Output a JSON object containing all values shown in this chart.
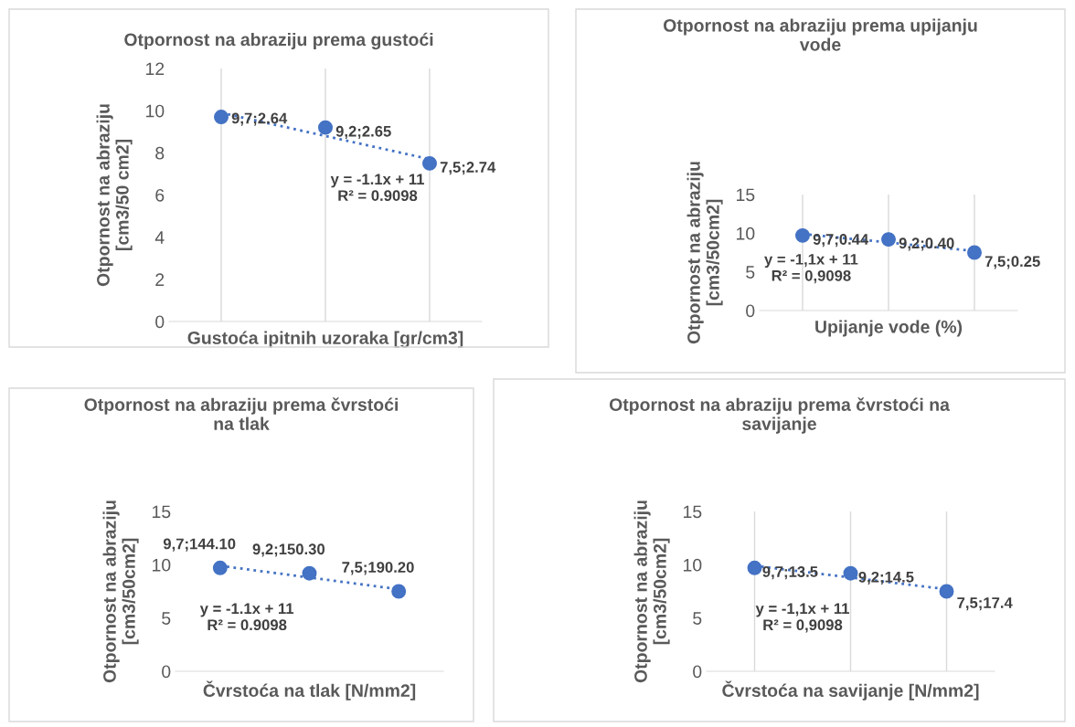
{
  "chart_data": [
    {
      "type": "scatter",
      "title": "Otpornost na abraziju prema gustoći",
      "xlabel": "Gustoća ipitnih uzoraka [gr/cm3]",
      "ylabel": "Otpornost na abraziju\n[cm3/50 cm2]",
      "categories": [
        null,
        null,
        null
      ],
      "ylim": [
        0,
        12
      ],
      "yticks": [
        0,
        2,
        4,
        6,
        8,
        10,
        12
      ],
      "grid": "x",
      "marker": "circle",
      "series": [
        {
          "color": "#4472c4",
          "values": [
            9.7,
            9.2,
            7.5
          ],
          "value_labels": [
            "9,7;2.64",
            "9,2;2.65",
            "7,5;2.74"
          ]
        },
        {
          "type": "line",
          "color": "#4472c4",
          "line_style": "dotted",
          "marker": "none",
          "values": [
            9.9,
            8.8,
            7.7
          ]
        }
      ],
      "annotations": [
        "y = -1.1x + 11\nR² = 0.9098"
      ]
    },
    {
      "type": "scatter",
      "title": "Otpornost na abraziju prema upijanju\nvode",
      "xlabel": "Upijanje vode (%)",
      "ylabel": "Otpornost na abraziju\n[cm3/50cm2]",
      "categories": [
        null,
        null,
        null
      ],
      "ylim": [
        0,
        15
      ],
      "yticks": [
        0,
        5,
        10,
        15
      ],
      "grid": "x",
      "marker": "circle",
      "series": [
        {
          "color": "#4472c4",
          "values": [
            9.7,
            9.2,
            7.5
          ],
          "value_labels": [
            "9,7;0.44",
            "9,2;0.40",
            "7,5;0.25"
          ]
        },
        {
          "type": "line",
          "color": "#4472c4",
          "line_style": "dotted",
          "marker": "none",
          "values": [
            9.9,
            8.8,
            7.7
          ]
        }
      ],
      "annotations": [
        "y = -1,1x + 11\nR² = 0,9098"
      ]
    },
    {
      "type": "scatter",
      "title": "Otpornost na abraziju prema čvrstoći\nna tlak",
      "xlabel": "Čvrstoća na tlak [N/mm2]",
      "ylabel": "Otpornost na abraziju\n[cm3/50cm2]",
      "categories": [
        null,
        null,
        null
      ],
      "ylim": [
        0,
        15
      ],
      "yticks": [
        0,
        5,
        10,
        15
      ],
      "grid": false,
      "marker": "circle",
      "series": [
        {
          "color": "#4472c4",
          "values": [
            9.7,
            9.2,
            7.5
          ],
          "value_labels": [
            "9,7;144.10",
            "9,2;150.30",
            "7,5;190.20"
          ]
        },
        {
          "type": "line",
          "color": "#4472c4",
          "line_style": "dotted",
          "marker": "none",
          "values": [
            9.9,
            8.8,
            7.7
          ]
        }
      ],
      "annotations": [
        "y = -1.1x + 11\nR² = 0.9098"
      ]
    },
    {
      "type": "scatter",
      "title": "Otpornost na abraziju prema čvrstoći na\nsavijanje",
      "xlabel": "Čvrstoća na savijanje [N/mm2]",
      "ylabel": "Otpornost na abraziju\n[cm3/50cm2]",
      "categories": [
        null,
        null,
        null
      ],
      "ylim": [
        0,
        15
      ],
      "yticks": [
        0,
        5,
        10,
        15
      ],
      "grid": "x",
      "marker": "circle",
      "series": [
        {
          "color": "#4472c4",
          "values": [
            9.7,
            9.2,
            7.5
          ],
          "value_labels": [
            "9,7;13.5",
            "9,2;14.5",
            "7,5;17.4"
          ]
        },
        {
          "type": "line",
          "color": "#4472c4",
          "line_style": "dotted",
          "marker": "none",
          "values": [
            9.9,
            8.8,
            7.7
          ]
        }
      ],
      "annotations": [
        "y = -1,1x + 11\nR² = 0,9098"
      ]
    }
  ]
}
